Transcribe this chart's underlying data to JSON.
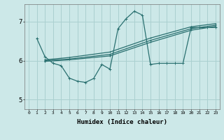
{
  "bg_color": "#cce8e8",
  "grid_color": "#aad0d0",
  "line_color": "#2a7070",
  "xlabel": "Humidex (Indice chaleur)",
  "ylabel_ticks": [
    5,
    6,
    7
  ],
  "xlim": [
    -0.5,
    23.5
  ],
  "ylim": [
    4.75,
    7.45
  ],
  "xticks": [
    0,
    1,
    2,
    3,
    4,
    5,
    6,
    7,
    8,
    9,
    10,
    11,
    12,
    13,
    14,
    15,
    16,
    17,
    18,
    19,
    20,
    21,
    22,
    23
  ],
  "series": [
    {
      "x": [
        1,
        2,
        3,
        4,
        5,
        6,
        7,
        8,
        9,
        10,
        11,
        12,
        13,
        14,
        15,
        16,
        17,
        18,
        19,
        20,
        21,
        22,
        23
      ],
      "y": [
        6.57,
        6.1,
        5.93,
        5.87,
        5.55,
        5.47,
        5.44,
        5.54,
        5.9,
        5.78,
        6.82,
        7.08,
        7.27,
        7.17,
        5.9,
        5.93,
        5.93,
        5.93,
        5.93,
        6.85,
        6.85,
        6.85,
        6.85
      ]
    },
    {
      "x": [
        2,
        5,
        10,
        15,
        20,
        23
      ],
      "y": [
        6.02,
        6.08,
        6.22,
        6.58,
        6.87,
        6.95
      ]
    },
    {
      "x": [
        2,
        5,
        10,
        15,
        20,
        23
      ],
      "y": [
        6.0,
        6.04,
        6.16,
        6.52,
        6.82,
        6.91
      ]
    },
    {
      "x": [
        2,
        5,
        10,
        15,
        20,
        23
      ],
      "y": [
        5.98,
        6.02,
        6.12,
        6.47,
        6.78,
        6.88
      ]
    }
  ]
}
